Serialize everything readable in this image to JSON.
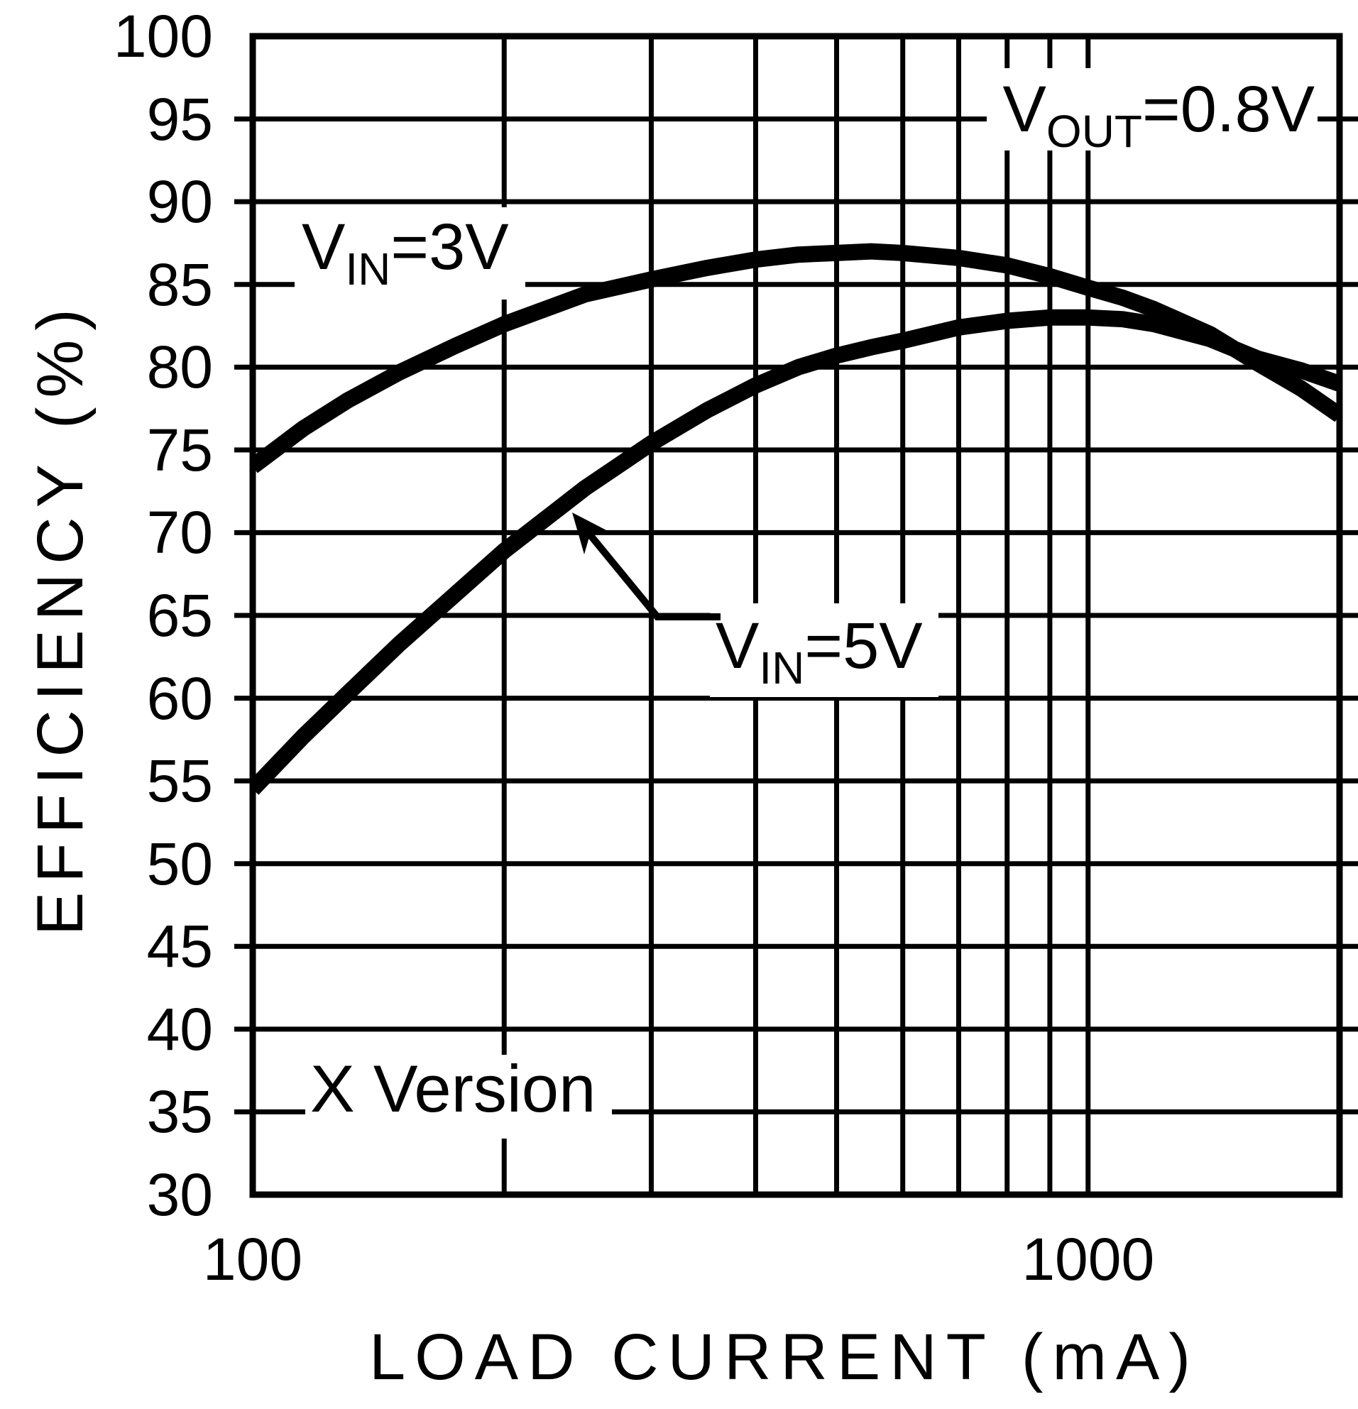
{
  "colors": {
    "ink": "#000000",
    "background": "#ffffff"
  },
  "chart_data": {
    "type": "line",
    "title": "",
    "xlabel": "LOAD CURRENT (mA)",
    "ylabel": "EFFICIENCY (%)",
    "x_scale": "log",
    "xlim": [
      100,
      2000
    ],
    "ylim": [
      30,
      100
    ],
    "grid": "on",
    "legend_position": "none",
    "y_ticks": [
      "100",
      "95",
      "90",
      "85",
      "80",
      "75",
      "70",
      "65",
      "60",
      "55",
      "50",
      "45",
      "40",
      "35",
      "30"
    ],
    "x_ticks": [
      {
        "label": "100",
        "value": 100
      },
      {
        "label": "1000",
        "value": 1000
      }
    ],
    "x_minor_gridlines": [
      200,
      300,
      400,
      500,
      600,
      700,
      800,
      900,
      1000
    ],
    "series": [
      {
        "name": "VIN=3V",
        "points": [
          [
            100,
            74.0
          ],
          [
            115,
            76.3
          ],
          [
            130,
            78.0
          ],
          [
            150,
            79.7
          ],
          [
            175,
            81.3
          ],
          [
            200,
            82.6
          ],
          [
            250,
            84.4
          ],
          [
            300,
            85.3
          ],
          [
            350,
            86.0
          ],
          [
            400,
            86.5
          ],
          [
            450,
            86.8
          ],
          [
            500,
            86.9
          ],
          [
            550,
            87.0
          ],
          [
            600,
            86.9
          ],
          [
            700,
            86.6
          ],
          [
            800,
            86.15
          ],
          [
            900,
            85.5
          ],
          [
            1000,
            84.8
          ],
          [
            1100,
            84.2
          ],
          [
            1200,
            83.5
          ],
          [
            1400,
            82.0
          ],
          [
            1600,
            80.2
          ],
          [
            1800,
            78.7
          ],
          [
            2000,
            77.1
          ]
        ]
      },
      {
        "name": "VIN=5V",
        "points": [
          [
            100,
            54.5
          ],
          [
            115,
            57.7
          ],
          [
            130,
            60.3
          ],
          [
            150,
            63.3
          ],
          [
            175,
            66.3
          ],
          [
            200,
            68.9
          ],
          [
            250,
            72.7
          ],
          [
            300,
            75.4
          ],
          [
            350,
            77.4
          ],
          [
            400,
            78.9
          ],
          [
            450,
            80.0
          ],
          [
            500,
            80.7
          ],
          [
            550,
            81.2
          ],
          [
            600,
            81.6
          ],
          [
            700,
            82.4
          ],
          [
            800,
            82.8
          ],
          [
            900,
            83.0
          ],
          [
            1000,
            83.0
          ],
          [
            1100,
            82.9
          ],
          [
            1200,
            82.6
          ],
          [
            1400,
            81.7
          ],
          [
            1600,
            80.5
          ],
          [
            1800,
            79.8
          ],
          [
            2000,
            79.0
          ]
        ]
      }
    ],
    "annotations": {
      "vin3": {
        "pre": "V",
        "sub": "IN",
        "post": "=3V"
      },
      "vin5": {
        "pre": "V",
        "sub": "IN",
        "post": "=5V"
      },
      "vout": {
        "pre": "V",
        "sub": "OUT",
        "post": "=0.8V"
      },
      "xversion": {
        "text": "X Version"
      }
    }
  }
}
